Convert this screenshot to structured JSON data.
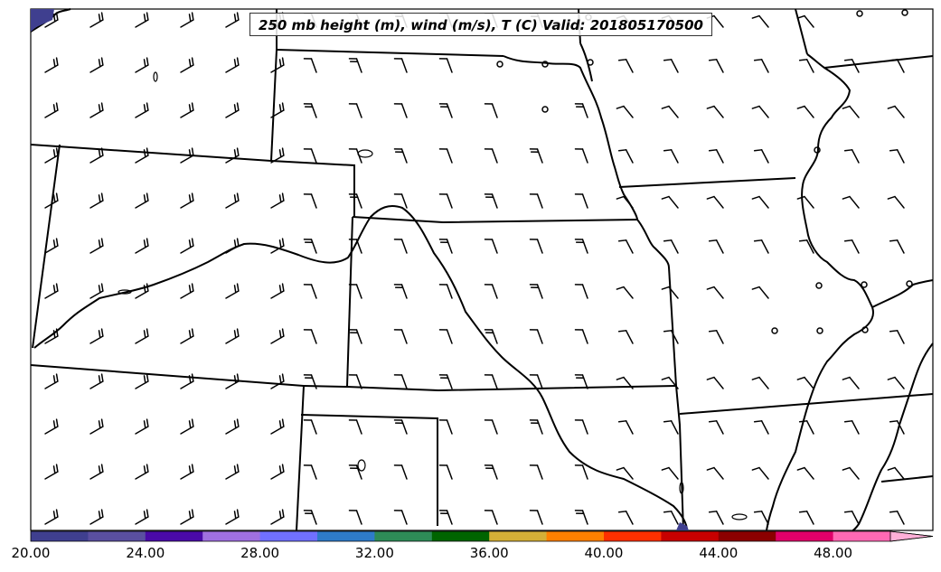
{
  "title": "250 mb height (m), wind (m/s), T (C) Valid: 201805170500",
  "colorbar": {
    "tick_labels": [
      "20.00",
      "24.00",
      "28.00",
      "32.00",
      "36.00",
      "40.00",
      "44.00",
      "48.00"
    ],
    "colors": [
      "#3f3f8f",
      "#5a4fa0",
      "#4a0aa8",
      "#a070e0",
      "#7070ff",
      "#2e7bc9",
      "#2e8b57",
      "#006400",
      "#d4af37",
      "#ff8000",
      "#ff3000",
      "#c80000",
      "#8b0000",
      "#e0006a",
      "#ff69b4",
      "#ffb0d8"
    ],
    "extend": "max"
  },
  "colors": {
    "background": "#ffffff",
    "boundary": "#000000",
    "barb": "#000000"
  }
}
